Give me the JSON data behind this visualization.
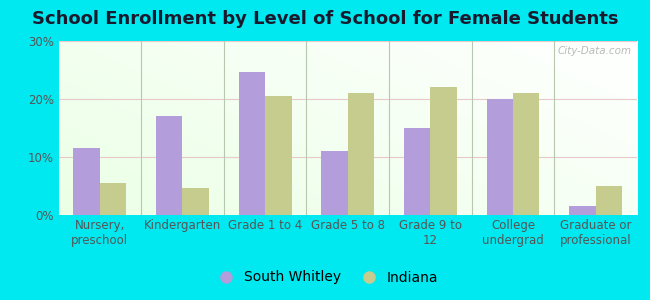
{
  "title": "School Enrollment by Level of School for Female Students",
  "categories": [
    "Nursery,\npreschool",
    "Kindergarten",
    "Grade 1 to 4",
    "Grade 5 to 8",
    "Grade 9 to\n12",
    "College\nundergrad",
    "Graduate or\nprofessional"
  ],
  "south_whitley": [
    11.5,
    17.0,
    24.5,
    11.0,
    15.0,
    20.0,
    1.5
  ],
  "indiana": [
    5.5,
    4.5,
    20.5,
    21.0,
    22.0,
    21.0,
    5.0
  ],
  "bar_color_sw": "#b39ddb",
  "bar_color_in": "#c5cc8e",
  "background_outer": "#00e8f0",
  "ylim": [
    0,
    30
  ],
  "yticks": [
    0,
    10,
    20,
    30
  ],
  "ytick_labels": [
    "0%",
    "10%",
    "20%",
    "30%"
  ],
  "legend_sw": "South Whitley",
  "legend_in": "Indiana",
  "title_fontsize": 13,
  "tick_fontsize": 8.5,
  "legend_fontsize": 10,
  "watermark": "City-Data.com",
  "grid_color": "#e8c8c8",
  "separator_color": "#b8c8b0"
}
